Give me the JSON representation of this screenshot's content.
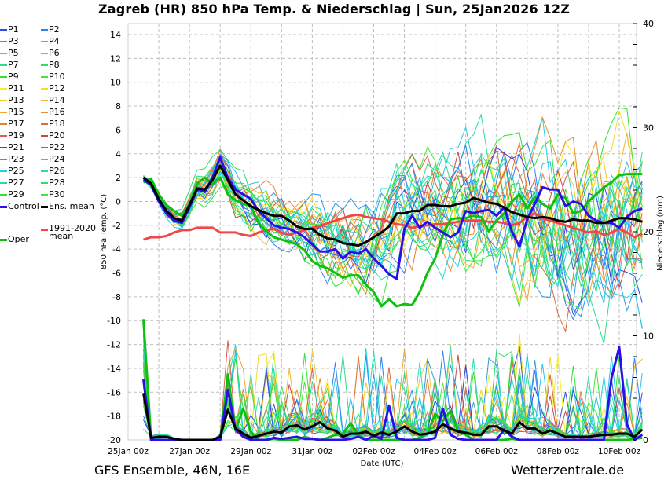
{
  "title": "Zagreb  (HR)  850 hPa Temp. & Niederschlag | Sun, 25Jan2026 12Z",
  "footer": {
    "left": "GFS Ensemble, 46N, 16E",
    "right": "Wetterzentrale.de"
  },
  "legend": [
    {
      "label": "P1",
      "color": "#2a4de0"
    },
    {
      "label": "P2",
      "color": "#2f7ff0"
    },
    {
      "label": "P3",
      "color": "#2b9ae8"
    },
    {
      "label": "P4",
      "color": "#29c3ea"
    },
    {
      "label": "P5",
      "color": "#22d2e2"
    },
    {
      "label": "P6",
      "color": "#27ddb0"
    },
    {
      "label": "P7",
      "color": "#2fdb8a"
    },
    {
      "label": "P8",
      "color": "#30dc6a"
    },
    {
      "label": "P9",
      "color": "#33e035"
    },
    {
      "label": "P10",
      "color": "#3ee834"
    },
    {
      "label": "P11",
      "color": "#f4ef2a"
    },
    {
      "label": "P12",
      "color": "#f2dc2c"
    },
    {
      "label": "P13",
      "color": "#f4c72a"
    },
    {
      "label": "P14",
      "color": "#f2b62c"
    },
    {
      "label": "P15",
      "color": "#f0a331"
    },
    {
      "label": "P16",
      "color": "#e48f34"
    },
    {
      "label": "P17",
      "color": "#e57e35"
    },
    {
      "label": "P18",
      "color": "#dc6b44"
    },
    {
      "label": "P19",
      "color": "#d8604d"
    },
    {
      "label": "P20",
      "color": "#c84848"
    },
    {
      "label": "P21",
      "color": "#2a4de0"
    },
    {
      "label": "P22",
      "color": "#2f7ff0"
    },
    {
      "label": "P23",
      "color": "#2b9ae8"
    },
    {
      "label": "P24",
      "color": "#29c3ea"
    },
    {
      "label": "P25",
      "color": "#22d2e2"
    },
    {
      "label": "P26",
      "color": "#27ddb0"
    },
    {
      "label": "P27",
      "color": "#2fdb8a"
    },
    {
      "label": "P28",
      "color": "#30dc6a"
    },
    {
      "label": "P29",
      "color": "#33e035"
    },
    {
      "label": "P30",
      "color": "#3ee834"
    },
    {
      "label": "Control",
      "color": "#2a10e8"
    },
    {
      "label": "Ens. mean",
      "color": "#000000"
    },
    {
      "label": "1991-2020\nmean",
      "color": "#f04848"
    },
    {
      "label": "Oper",
      "color": "#10c010"
    }
  ],
  "chart_data": {
    "type": "line",
    "title": "Zagreb  (HR)  850 hPa Temp. & Niederschlag | Sun, 25Jan2026 12Z",
    "xlabel": "Date (UTC)",
    "ylabel": "850 hPa Temp. (°C)",
    "ylabel_right": "Niederschlag (mm)",
    "ylim": [
      -20,
      15
    ],
    "ylim_right": [
      0,
      40
    ],
    "yticks": [
      -20,
      -18,
      -16,
      -14,
      -12,
      -10,
      -8,
      -6,
      -4,
      -2,
      0,
      2,
      4,
      6,
      8,
      10,
      12,
      14
    ],
    "yticks_right": [
      0,
      10,
      20,
      30,
      40
    ],
    "xticks": [
      "25Jan 00z",
      "27Jan 00z",
      "29Jan 00z",
      "31Jan 00z",
      "02Feb 00z",
      "04Feb 00z",
      "06Feb 00z",
      "08Feb 00z",
      "10Feb 00z"
    ],
    "x_units": "hours since 25Jan 00z, 6-hourly from 12",
    "x_start_hour": 12,
    "x_step_hours": 6,
    "grid": true,
    "series_temp": [
      {
        "name": "Ens. mean",
        "values": [
          2.0,
          1.5,
          0.2,
          -0.8,
          -1.4,
          -1.6,
          -0.3,
          1.1,
          1.0,
          1.8,
          3.0,
          1.8,
          0.6,
          0.1,
          -0.4,
          -0.7,
          -1.0,
          -1.2,
          -1.2,
          -1.6,
          -2.1,
          -2.3,
          -2.3,
          -2.8,
          -3.1,
          -3.2,
          -3.5,
          -3.6,
          -3.7,
          -3.4,
          -3.0,
          -2.6,
          -2.1,
          -1.0,
          -1.0,
          -0.8,
          -0.8,
          -0.3,
          -0.3,
          -0.4,
          -0.4,
          -0.2,
          -0.1,
          0.3,
          0.1,
          -0.1,
          -0.2,
          -0.5,
          -0.9,
          -1.1,
          -1.3,
          -1.4,
          -1.3,
          -1.4,
          -1.6,
          -1.7,
          -1.5,
          -1.6,
          -1.6,
          -1.8,
          -1.8,
          -1.6,
          -1.4,
          -1.4,
          -1.5,
          -1.7
        ]
      },
      {
        "name": "Control",
        "values": [
          1.8,
          1.4,
          0.0,
          -1.0,
          -1.6,
          -1.8,
          -0.5,
          1.0,
          0.8,
          2.0,
          3.7,
          2.0,
          1.0,
          0.6,
          0.2,
          -0.8,
          -1.4,
          -2.0,
          -2.2,
          -2.3,
          -2.6,
          -3.0,
          -3.6,
          -4.2,
          -4.2,
          -4.0,
          -4.8,
          -4.2,
          -4.4,
          -4.0,
          -4.8,
          -5.4,
          -6.1,
          -6.5,
          -2.3,
          -1.2,
          -2.2,
          -1.7,
          -2.2,
          -2.6,
          -3.0,
          -2.6,
          -0.8,
          -1.0,
          -0.8,
          -0.7,
          -1.2,
          -0.5,
          -2.5,
          -3.8,
          -1.5,
          -0.2,
          1.2,
          1.0,
          1.0,
          -0.4,
          0.0,
          -0.2,
          -1.2,
          -1.6,
          -1.8,
          -1.8,
          -2.2,
          -1.3,
          -0.8,
          -0.6
        ]
      },
      {
        "name": "Oper",
        "values": [
          1.6,
          1.9,
          0.6,
          -0.3,
          -0.8,
          -1.2,
          -0.2,
          1.5,
          2.0,
          1.5,
          2.0,
          0.6,
          0.1,
          -0.2,
          -0.4,
          -1.8,
          -2.5,
          -3.0,
          -3.2,
          -3.4,
          -3.6,
          -4.1,
          -5.0,
          -5.4,
          -5.6,
          -6.0,
          -6.4,
          -6.2,
          -6.2,
          -7.0,
          -7.6,
          -8.8,
          -8.2,
          -8.8,
          -8.6,
          -8.7,
          -7.6,
          -6.0,
          -4.8,
          -2.8,
          -1.5,
          -1.4,
          -1.4,
          -1.2,
          -1.3,
          -2.5,
          -1.6,
          -1.0,
          0.0,
          0.6,
          -0.6,
          0.4,
          -0.2,
          -0.6,
          0.6,
          0.3,
          -1.0,
          -0.8,
          0.0,
          0.6,
          1.2,
          1.6,
          2.2,
          2.3,
          2.3,
          2.3
        ]
      },
      {
        "name": "1991-2020 mean",
        "values": [
          -3.2,
          -3.0,
          -3.0,
          -2.9,
          -2.6,
          -2.4,
          -2.4,
          -2.2,
          -2.2,
          -2.2,
          -2.6,
          -2.6,
          -2.6,
          -2.8,
          -2.9,
          -2.6,
          -2.4,
          -2.3,
          -2.6,
          -2.8,
          -2.6,
          -2.4,
          -2.2,
          -2.1,
          -1.8,
          -1.6,
          -1.4,
          -1.2,
          -1.1,
          -1.3,
          -1.4,
          -1.5,
          -1.7,
          -1.9,
          -2.0,
          -2.2,
          -2.1,
          -2.0,
          -1.9,
          -1.9,
          -1.8,
          -1.7,
          -1.6,
          -1.6,
          -1.6,
          -1.7,
          -1.7,
          -1.8,
          -2.0,
          -1.8,
          -1.3,
          -1.0,
          -1.4,
          -1.6,
          -1.8,
          -2.0,
          -2.2,
          -2.4,
          -2.6,
          -2.5,
          -2.8,
          -2.6,
          -2.3,
          -2.6,
          -3.0,
          -2.7
        ]
      }
    ],
    "series_precip": [
      {
        "name": "Ens. mean",
        "values": [
          4.5,
          0.2,
          0.3,
          0.3,
          0.1,
          0.0,
          0.0,
          0.0,
          0.0,
          0.0,
          0.3,
          2.9,
          1.1,
          0.6,
          0.2,
          0.4,
          0.6,
          0.8,
          0.7,
          1.3,
          1.4,
          1.0,
          1.3,
          1.7,
          1.1,
          0.9,
          0.3,
          0.6,
          0.6,
          0.8,
          0.4,
          0.7,
          0.5,
          0.8,
          1.3,
          0.8,
          0.5,
          0.6,
          0.8,
          1.5,
          1.1,
          0.8,
          0.7,
          0.5,
          0.5,
          1.3,
          1.3,
          0.9,
          0.6,
          1.7,
          1.1,
          1.1,
          0.6,
          0.9,
          0.6,
          0.3,
          0.3,
          0.3,
          0.3,
          0.4,
          0.5,
          0.5,
          0.6,
          0.6,
          0.3,
          1.0
        ]
      },
      {
        "name": "Control",
        "values": [
          5.8,
          0.0,
          0.0,
          0.0,
          0.0,
          0.0,
          0.0,
          0.0,
          0.0,
          0.0,
          0.0,
          4.8,
          1.0,
          0.3,
          0.0,
          0.0,
          0.0,
          0.2,
          0.1,
          0.2,
          0.3,
          0.1,
          0.1,
          0.0,
          0.0,
          0.0,
          0.0,
          0.1,
          0.3,
          0.0,
          0.4,
          0.1,
          3.3,
          0.2,
          0.0,
          0.0,
          0.0,
          0.0,
          0.2,
          3.0,
          0.5,
          0.1,
          0.0,
          0.0,
          0.0,
          0.0,
          0.0,
          1.0,
          0.3,
          0.0,
          0.0,
          0.0,
          0.0,
          0.0,
          0.0,
          0.0,
          0.0,
          0.0,
          0.0,
          0.0,
          0.0,
          6.0,
          8.9,
          1.5,
          0.0,
          0.5
        ]
      },
      {
        "name": "Oper",
        "values": [
          11.6,
          0.0,
          0.0,
          0.0,
          0.0,
          0.0,
          0.0,
          0.0,
          0.0,
          0.0,
          0.0,
          6.3,
          0.9,
          3.0,
          0.8,
          0.0,
          0.0,
          0.1,
          0.0,
          0.0,
          0.0,
          0.3,
          0.1,
          0.0,
          0.2,
          0.5,
          0.6,
          1.6,
          0.5,
          0.0,
          0.0,
          0.0,
          0.0,
          0.0,
          0.0,
          0.0,
          0.2,
          0.6,
          2.5,
          1.8,
          2.8,
          0.8,
          0.5,
          0.0,
          0.0,
          0.0,
          0.0,
          0.0,
          0.1,
          0.0,
          0.0,
          0.0,
          0.0,
          0.0,
          0.0,
          0.0,
          0.0,
          0.0,
          0.0,
          0.0,
          0.0,
          0.0,
          0.0,
          0.0,
          0.1,
          0.2
        ]
      }
    ]
  }
}
